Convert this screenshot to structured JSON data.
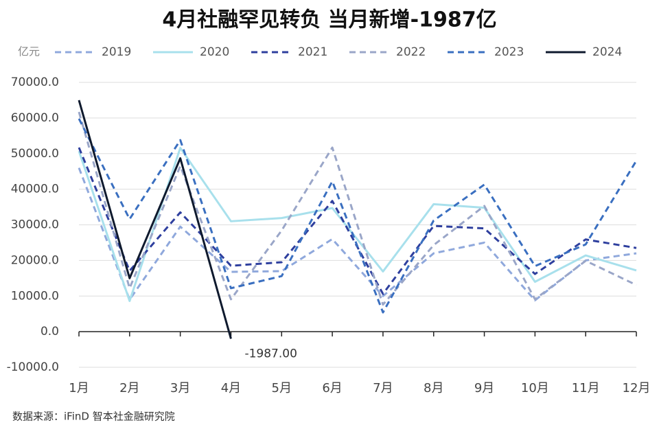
{
  "chart_data": {
    "type": "line",
    "title": "4月社融罕见转负 当月新增-1987亿",
    "unit_label": "亿元",
    "source": "数据来源：iFinD 智本社金融研究院",
    "categories": [
      "1月",
      "2月",
      "3月",
      "4月",
      "5月",
      "6月",
      "7月",
      "8月",
      "9月",
      "10月",
      "11月",
      "12月"
    ],
    "series": [
      {
        "name": "2019",
        "color": "#8fa8dc",
        "dashed": true,
        "values": [
          46000,
          9000,
          29500,
          16800,
          17000,
          26000,
          10000,
          22000,
          25000,
          8800,
          20000,
          22000
        ]
      },
      {
        "name": "2020",
        "color": "#a8e0ec",
        "dashed": false,
        "values": [
          50700,
          8600,
          51600,
          31000,
          31900,
          34700,
          16900,
          35800,
          34800,
          14000,
          21400,
          17200
        ]
      },
      {
        "name": "2021",
        "color": "#2e3f9e",
        "dashed": true,
        "values": [
          51700,
          17100,
          33500,
          18500,
          19500,
          36700,
          10600,
          29700,
          29000,
          16200,
          25900,
          23500
        ]
      },
      {
        "name": "2022",
        "color": "#9aa6c8",
        "dashed": true,
        "values": [
          61700,
          12200,
          46500,
          9100,
          28400,
          51700,
          7600,
          24300,
          35300,
          9100,
          19900,
          13100
        ]
      },
      {
        "name": "2023",
        "color": "#3a6fc0",
        "dashed": true,
        "values": [
          59800,
          31600,
          53800,
          12200,
          15600,
          42200,
          5400,
          31200,
          41300,
          18400,
          24500,
          48000
        ]
      },
      {
        "name": "2024",
        "color": "#0f1a2e",
        "dashed": false,
        "values": [
          65000,
          15000,
          48700,
          -1987,
          null,
          null,
          null,
          null,
          null,
          null,
          null,
          null
        ],
        "value_labels": [
          null,
          null,
          null,
          "-1987.00",
          null,
          null,
          null,
          null,
          null,
          null,
          null,
          null
        ]
      }
    ],
    "ylim": [
      -10000,
      70000
    ],
    "yticks": [
      {
        "value": -10000,
        "label": "-10000.0"
      },
      {
        "value": 0,
        "label": "0.0"
      },
      {
        "value": 10000,
        "label": "10000.0"
      },
      {
        "value": 20000,
        "label": "20000.0"
      },
      {
        "value": 30000,
        "label": "30000.0"
      },
      {
        "value": 40000,
        "label": "40000.0"
      },
      {
        "value": 50000,
        "label": "50000.0"
      },
      {
        "value": 60000,
        "label": "60000.0"
      },
      {
        "value": 70000,
        "label": "70000.0"
      }
    ],
    "grid": true
  }
}
